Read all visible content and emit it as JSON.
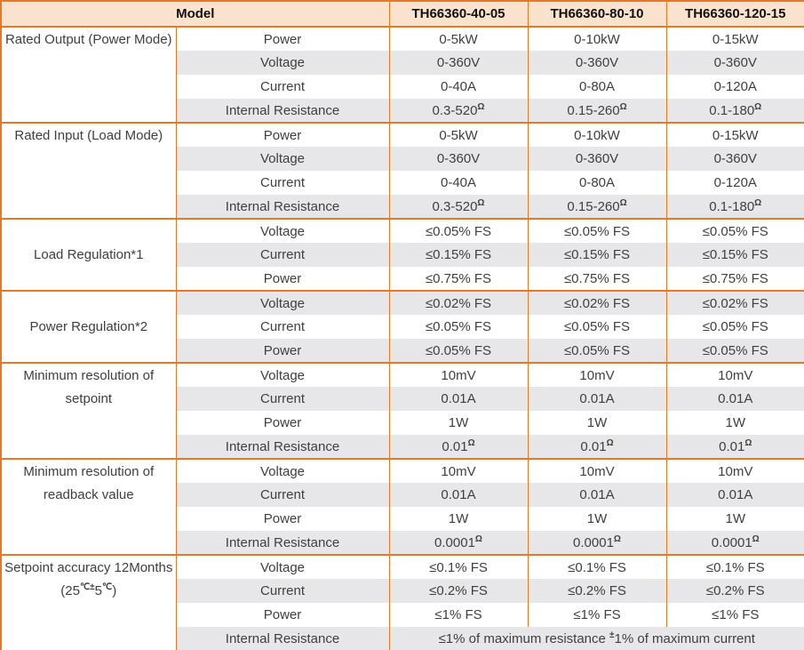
{
  "colors": {
    "border_orange": "#E87728",
    "header_fill": "#FBE2CC",
    "stripe_gray": "#E7E7EA",
    "body_text": "#3F3F3F",
    "header_text": "#111111"
  },
  "table": {
    "header": {
      "model_label": "Model",
      "columns": [
        "TH66360-40-05",
        "TH66360-80-10",
        "TH66360-120-15"
      ]
    },
    "groups": [
      {
        "id": "rated-output-power-mode",
        "label": [
          "Rated Output (Power Mode)"
        ],
        "rows": [
          {
            "param": "Power",
            "values": [
              "0-5kW",
              "0-10kW",
              "0-15kW"
            ]
          },
          {
            "param": "Voltage",
            "values": [
              "0-360V",
              "0-360V",
              "0-360V"
            ]
          },
          {
            "param": "Current",
            "values": [
              "0-40A",
              "0-80A",
              "0-120A"
            ]
          },
          {
            "param": "Internal Resistance",
            "values": [
              "0.3-520{Ω}",
              "0.15-260{Ω}",
              "0.1-180{Ω}"
            ]
          }
        ]
      },
      {
        "id": "rated-input-load-mode",
        "label": [
          "Rated Input (Load Mode)"
        ],
        "rows": [
          {
            "param": "Power",
            "values": [
              "0-5kW",
              "0-10kW",
              "0-15kW"
            ]
          },
          {
            "param": "Voltage",
            "values": [
              "0-360V",
              "0-360V",
              "0-360V"
            ]
          },
          {
            "param": "Current",
            "values": [
              "0-40A",
              "0-80A",
              "0-120A"
            ]
          },
          {
            "param": "Internal Resistance",
            "values": [
              "0.3-520{Ω}",
              "0.15-260{Ω}",
              "0.1-180{Ω}"
            ]
          }
        ]
      },
      {
        "id": "load-regulation",
        "label": [
          "Load Regulation*1"
        ],
        "rows": [
          {
            "param": "Voltage",
            "values": [
              "≤0.05% FS",
              "≤0.05% FS",
              "≤0.05% FS"
            ]
          },
          {
            "param": "Current",
            "values": [
              "≤0.15% FS",
              "≤0.15% FS",
              "≤0.15% FS"
            ]
          },
          {
            "param": "Power",
            "values": [
              "≤0.75% FS",
              "≤0.75% FS",
              "≤0.75% FS"
            ]
          }
        ]
      },
      {
        "id": "power-regulation",
        "label": [
          "Power Regulation*2"
        ],
        "rows": [
          {
            "param": "Voltage",
            "values": [
              "≤0.02% FS",
              "≤0.02% FS",
              "≤0.02% FS"
            ]
          },
          {
            "param": "Current",
            "values": [
              "≤0.05% FS",
              "≤0.05% FS",
              "≤0.05% FS"
            ]
          },
          {
            "param": "Power",
            "values": [
              "≤0.05% FS",
              "≤0.05% FS",
              "≤0.05% FS"
            ]
          }
        ]
      },
      {
        "id": "min-resolution-setpoint",
        "label": [
          "Minimum resolution of",
          "setpoint"
        ],
        "rows": [
          {
            "param": "Voltage",
            "values": [
              "10mV",
              "10mV",
              "10mV"
            ]
          },
          {
            "param": "Current",
            "values": [
              "0.01A",
              "0.01A",
              "0.01A"
            ]
          },
          {
            "param": "Power",
            "values": [
              "1W",
              "1W",
              "1W"
            ]
          },
          {
            "param": "Internal Resistance",
            "values": [
              "0.01{Ω}",
              "0.01{Ω}",
              "0.01{Ω}"
            ]
          }
        ]
      },
      {
        "id": "min-resolution-readback",
        "label": [
          "Minimum resolution of",
          "readback value"
        ],
        "rows": [
          {
            "param": "Voltage",
            "values": [
              "10mV",
              "10mV",
              "10mV"
            ]
          },
          {
            "param": "Current",
            "values": [
              "0.01A",
              "0.01A",
              "0.01A"
            ]
          },
          {
            "param": "Power",
            "values": [
              "1W",
              "1W",
              "1W"
            ]
          },
          {
            "param": "Internal Resistance",
            "values": [
              "0.0001{Ω}",
              "0.0001{Ω}",
              "0.0001{Ω}"
            ]
          }
        ]
      },
      {
        "id": "setpoint-accuracy",
        "label": [
          "Setpoint accuracy 12Months",
          "(25{℃±}5{℃})"
        ],
        "rows": [
          {
            "param": "Voltage",
            "values": [
              "≤0.1% FS",
              "≤0.1% FS",
              "≤0.1% FS"
            ]
          },
          {
            "param": "Current",
            "values": [
              "≤0.2% FS",
              "≤0.2% FS",
              "≤0.2% FS"
            ]
          },
          {
            "param": "Power",
            "values": [
              "≤1% FS",
              "≤1% FS",
              "≤1% FS"
            ]
          },
          {
            "param": "Internal Resistance",
            "merged": "≤1% of maximum resistance {±}1% of maximum current"
          }
        ]
      }
    ]
  }
}
